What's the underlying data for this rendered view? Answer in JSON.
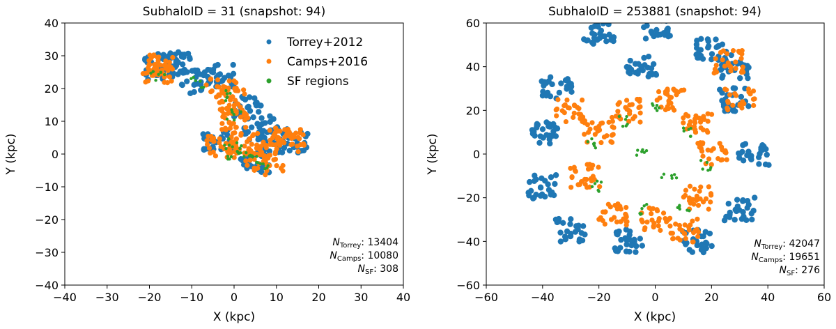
{
  "colors": {
    "torrey": "#1f77b4",
    "camps": "#ff7f0e",
    "sf": "#2ca02c"
  },
  "legend": {
    "torrey": "Torrey+2012",
    "camps": "Camps+2016",
    "sf": "SF regions",
    "location": "upper-right"
  },
  "chart_data": [
    {
      "type": "scatter",
      "title": "SubhaloID = 31 (snapshot: 94)",
      "xlabel": "X (kpc)",
      "ylabel": "Y (kpc)",
      "xlim": [
        -40,
        40
      ],
      "ylim": [
        -40,
        40
      ],
      "xticks": [
        "−40",
        "−30",
        "−20",
        "−10",
        "0",
        "10",
        "20",
        "30",
        "40"
      ],
      "yticks": [
        "40",
        "30",
        "20",
        "10",
        "0",
        "−10",
        "−20",
        "−30",
        "−40"
      ],
      "counts": {
        "torrey_label": "N",
        "torrey_sub": "Torrey",
        "torrey_value": ": 13404",
        "camps_label": "N",
        "camps_sub": "Camps",
        "camps_value": ": 10080",
        "sf_label": "N",
        "sf_sub": "SF",
        "sf_value": ": 308"
      },
      "series": [
        {
          "name": "Torrey+2012",
          "values": [
            [
              -18,
              26
            ],
            [
              -15,
              27
            ],
            [
              -12,
              28
            ],
            [
              -9,
              22
            ],
            [
              -3,
              24
            ],
            [
              3,
              14
            ],
            [
              6,
              8
            ],
            [
              10,
              5
            ],
            [
              14,
              4
            ],
            [
              5,
              -2
            ],
            [
              -4,
              4
            ]
          ]
        },
        {
          "name": "Camps+2016",
          "values": [
            [
              -18,
              25
            ],
            [
              -17,
              27
            ],
            [
              -3,
              20
            ],
            [
              -1,
              16
            ],
            [
              0,
              10
            ],
            [
              2,
              3
            ],
            [
              -3,
              2
            ],
            [
              4,
              0
            ],
            [
              8,
              -3
            ],
            [
              11,
              5
            ],
            [
              13,
              4
            ]
          ]
        },
        {
          "name": "SF regions",
          "values": [
            [
              -18,
              24
            ],
            [
              -9,
              22
            ],
            [
              -2,
              18
            ],
            [
              0,
              12
            ],
            [
              -1,
              3
            ],
            [
              0,
              0
            ],
            [
              2,
              1
            ],
            [
              5,
              -2
            ],
            [
              7,
              -3
            ]
          ]
        }
      ]
    },
    {
      "type": "scatter",
      "title": "SubhaloID = 253881 (snapshot: 94)",
      "xlabel": "X (kpc)",
      "ylabel": "Y (kpc)",
      "xlim": [
        -60,
        60
      ],
      "ylim": [
        -60,
        60
      ],
      "xticks": [
        "−60",
        "−40",
        "−20",
        "0",
        "20",
        "40",
        "60"
      ],
      "yticks": [
        "60",
        "40",
        "20",
        "0",
        "−20",
        "−40",
        "−60"
      ],
      "counts": {
        "torrey_label": "N",
        "torrey_sub": "Torrey",
        "torrey_value": ": 42047",
        "camps_label": "N",
        "camps_sub": "Camps",
        "camps_value": ": 19651",
        "sf_label": "N",
        "sf_sub": "SF",
        "sf_value": ": 276"
      },
      "series": [
        {
          "name": "Torrey+2012",
          "values": [
            [
              -20,
              55
            ],
            [
              0,
              58
            ],
            [
              20,
              48
            ],
            [
              28,
              40
            ],
            [
              -35,
              30
            ],
            [
              -40,
              10
            ],
            [
              -40,
              -15
            ],
            [
              -30,
              -35
            ],
            [
              -10,
              -40
            ],
            [
              15,
              -40
            ],
            [
              30,
              -25
            ],
            [
              35,
              0
            ],
            [
              28,
              25
            ],
            [
              -5,
              40
            ]
          ]
        },
        {
          "name": "Camps+2016",
          "values": [
            [
              -10,
              20
            ],
            [
              5,
              25
            ],
            [
              15,
              15
            ],
            [
              20,
              0
            ],
            [
              15,
              -20
            ],
            [
              0,
              -30
            ],
            [
              -15,
              -28
            ],
            [
              -25,
              -10
            ],
            [
              -20,
              10
            ],
            [
              10,
              -35
            ],
            [
              -30,
              20
            ],
            [
              26,
              42
            ],
            [
              30,
              25
            ]
          ]
        },
        {
          "name": "SF regions",
          "values": [
            [
              -12,
              15
            ],
            [
              0,
              22
            ],
            [
              10,
              10
            ],
            [
              18,
              -5
            ],
            [
              10,
              -25
            ],
            [
              -5,
              -25
            ],
            [
              -20,
              -15
            ],
            [
              -22,
              5
            ],
            [
              -5,
              0
            ],
            [
              5,
              -10
            ]
          ]
        }
      ]
    }
  ]
}
